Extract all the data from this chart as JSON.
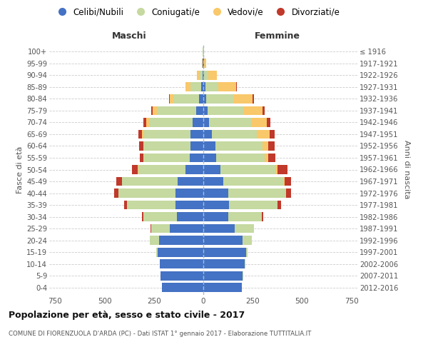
{
  "age_groups": [
    "0-4",
    "5-9",
    "10-14",
    "15-19",
    "20-24",
    "25-29",
    "30-34",
    "35-39",
    "40-44",
    "45-49",
    "50-54",
    "55-59",
    "60-64",
    "65-69",
    "70-74",
    "75-79",
    "80-84",
    "85-89",
    "90-94",
    "95-99",
    "100+"
  ],
  "birth_years": [
    "2012-2016",
    "2007-2011",
    "2002-2006",
    "1997-2001",
    "1992-1996",
    "1987-1991",
    "1982-1986",
    "1977-1981",
    "1972-1976",
    "1967-1971",
    "1962-1966",
    "1957-1961",
    "1952-1956",
    "1947-1951",
    "1942-1946",
    "1937-1941",
    "1932-1936",
    "1927-1931",
    "1922-1926",
    "1917-1921",
    "≤ 1916"
  ],
  "male_celibi": [
    210,
    215,
    220,
    230,
    225,
    170,
    135,
    140,
    140,
    130,
    90,
    70,
    65,
    65,
    55,
    35,
    20,
    10,
    5,
    2,
    1
  ],
  "male_coniugati": [
    0,
    1,
    2,
    10,
    45,
    95,
    170,
    245,
    290,
    280,
    240,
    230,
    235,
    235,
    220,
    200,
    130,
    55,
    18,
    3,
    1
  ],
  "male_vedovi": [
    0,
    0,
    0,
    0,
    0,
    0,
    0,
    1,
    1,
    1,
    2,
    3,
    5,
    10,
    15,
    20,
    20,
    25,
    10,
    2,
    0
  ],
  "male_divorziati": [
    0,
    0,
    0,
    0,
    1,
    2,
    5,
    15,
    20,
    30,
    30,
    20,
    20,
    20,
    15,
    10,
    5,
    2,
    0,
    0,
    0
  ],
  "female_nubili": [
    195,
    200,
    210,
    215,
    200,
    160,
    125,
    130,
    125,
    100,
    85,
    65,
    60,
    45,
    30,
    20,
    15,
    10,
    5,
    2,
    1
  ],
  "female_coniugate": [
    0,
    1,
    2,
    10,
    45,
    95,
    170,
    245,
    290,
    305,
    280,
    245,
    240,
    225,
    215,
    185,
    135,
    65,
    20,
    3,
    0
  ],
  "female_vedove": [
    0,
    0,
    0,
    0,
    0,
    0,
    1,
    2,
    3,
    5,
    10,
    20,
    30,
    65,
    75,
    95,
    100,
    90,
    45,
    8,
    1
  ],
  "female_divorziate": [
    0,
    0,
    0,
    0,
    1,
    2,
    8,
    15,
    25,
    35,
    50,
    35,
    30,
    25,
    18,
    10,
    5,
    3,
    0,
    0,
    0
  ],
  "colors": {
    "celibi": "#4472C4",
    "coniugati": "#c5d9a0",
    "vedovi": "#f9c86a",
    "divorziati": "#c0392b"
  },
  "xlim": 780,
  "xticks": [
    -750,
    -500,
    -250,
    0,
    250,
    500,
    750
  ],
  "title": "Popolazione per età, sesso e stato civile - 2017",
  "subtitle": "COMUNE DI FIORENZUOLA D'ARDA (PC) - Dati ISTAT 1° gennaio 2017 - Elaborazione TUTTITALIA.IT",
  "xlabel_left": "Maschi",
  "xlabel_right": "Femmine",
  "ylabel_left": "Fasce di età",
  "ylabel_right": "Anni di nascita",
  "legend_labels": [
    "Celibi/Nubili",
    "Coniugati/e",
    "Vedovi/e",
    "Divorziati/e"
  ],
  "background_color": "#ffffff",
  "grid_color": "#cccccc",
  "bar_height": 0.78
}
